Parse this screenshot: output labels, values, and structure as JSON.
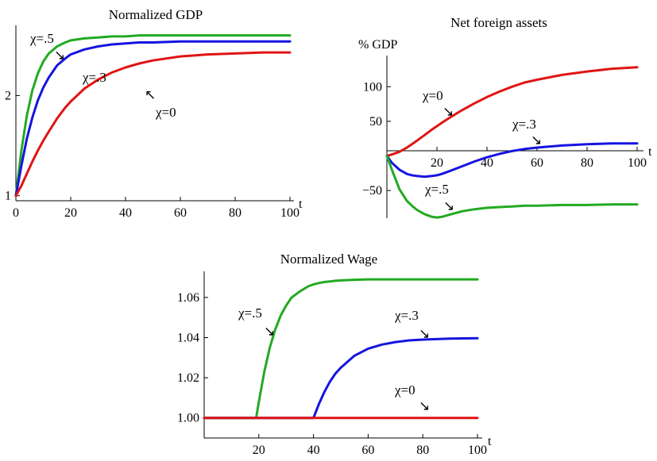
{
  "chart_data": [
    {
      "type": "line",
      "title": "Normalized GDP",
      "xlabel": "t",
      "ylabel": "",
      "xlim": [
        0,
        100
      ],
      "ylim": [
        0.95,
        2.7
      ],
      "xticks": [
        0,
        20,
        40,
        60,
        80,
        100
      ],
      "yticks": [
        1,
        2
      ],
      "x": [
        0,
        2,
        4,
        6,
        8,
        10,
        12,
        15,
        18,
        20,
        25,
        30,
        35,
        40,
        45,
        50,
        60,
        70,
        80,
        90,
        100
      ],
      "series": [
        {
          "name": "χ=.5",
          "color": "#22aa22",
          "values": [
            1.0,
            1.45,
            1.8,
            2.05,
            2.22,
            2.34,
            2.42,
            2.49,
            2.53,
            2.55,
            2.57,
            2.58,
            2.59,
            2.59,
            2.6,
            2.6,
            2.6,
            2.6,
            2.6,
            2.6,
            2.6
          ]
        },
        {
          "name": "χ=.3",
          "color": "#1414e0",
          "values": [
            1.0,
            1.3,
            1.57,
            1.78,
            1.95,
            2.08,
            2.18,
            2.3,
            2.37,
            2.41,
            2.46,
            2.49,
            2.51,
            2.52,
            2.53,
            2.53,
            2.54,
            2.54,
            2.54,
            2.54,
            2.54
          ]
        },
        {
          "name": "χ=0",
          "color": "#e01414",
          "values": [
            1.0,
            1.1,
            1.22,
            1.34,
            1.45,
            1.55,
            1.64,
            1.77,
            1.88,
            1.94,
            2.07,
            2.16,
            2.23,
            2.28,
            2.32,
            2.35,
            2.39,
            2.41,
            2.42,
            2.43,
            2.43
          ]
        }
      ],
      "annotations": [
        {
          "text": "χ=.5",
          "arrow": "↘"
        },
        {
          "text": "χ=.3",
          "arrow": ""
        },
        {
          "text": "χ=0",
          "arrow": "↖"
        }
      ]
    },
    {
      "type": "line",
      "title": "Net foreign assets",
      "xlabel": "t",
      "ylabel": "% GDP",
      "xlim": [
        0,
        100
      ],
      "ylim": [
        -90,
        145
      ],
      "xticks": [
        20,
        40,
        60,
        80,
        100
      ],
      "yticks": [
        -50,
        50,
        100
      ],
      "x": [
        0,
        2,
        5,
        8,
        10,
        12,
        15,
        18,
        20,
        22,
        25,
        30,
        35,
        40,
        45,
        50,
        55,
        60,
        70,
        80,
        90,
        100
      ],
      "series": [
        {
          "name": "χ=0",
          "color": "#e01414",
          "values": [
            0,
            2,
            6,
            12,
            17,
            22,
            30,
            38,
            43,
            48,
            55,
            66,
            76,
            85,
            93,
            100,
            106,
            110,
            117,
            122,
            126,
            128
          ]
        },
        {
          "name": "χ=.3",
          "color": "#1414e0",
          "values": [
            0,
            -10,
            -20,
            -26,
            -28,
            -29,
            -30,
            -29,
            -28,
            -26,
            -22,
            -15,
            -8,
            -2,
            3,
            7,
            10,
            12,
            15,
            17,
            18,
            18
          ]
        },
        {
          "name": "χ=.5",
          "color": "#22aa22",
          "values": [
            0,
            -20,
            -48,
            -65,
            -72,
            -78,
            -84,
            -88,
            -89,
            -88,
            -85,
            -80,
            -77,
            -75,
            -74,
            -73,
            -72,
            -72,
            -71,
            -71,
            -70,
            -70
          ]
        }
      ],
      "annotations": [
        {
          "text": "χ=0",
          "arrow": "↘"
        },
        {
          "text": "χ=.3",
          "arrow": "↘"
        },
        {
          "text": "χ=.5",
          "arrow": "↘"
        }
      ]
    },
    {
      "type": "line",
      "title": "Normalized Wage",
      "xlabel": "t",
      "ylabel": "",
      "xlim": [
        0,
        100
      ],
      "ylim": [
        0.99,
        1.073
      ],
      "xticks": [
        20,
        40,
        60,
        80,
        100
      ],
      "yticks": [
        "1.00",
        "1.02",
        "1.04",
        "1.06"
      ],
      "x": [
        0,
        19,
        20,
        22,
        24,
        26,
        28,
        30,
        32,
        35,
        38,
        40,
        42,
        44,
        46,
        48,
        50,
        55,
        60,
        65,
        70,
        75,
        80,
        90,
        100
      ],
      "series": [
        {
          "name": "χ=.5",
          "color": "#22aa22",
          "values": [
            1.0,
            1.0,
            1.008,
            1.023,
            1.035,
            1.044,
            1.051,
            1.056,
            1.06,
            1.063,
            1.0655,
            1.0665,
            1.0672,
            1.0677,
            1.068,
            1.0683,
            1.0685,
            1.0688,
            1.069,
            1.069,
            1.069,
            1.069,
            1.069,
            1.069,
            1.069
          ]
        },
        {
          "name": "χ=.3",
          "color": "#1414e0",
          "values": [
            1.0,
            1.0,
            1.0,
            1.0,
            1.0,
            1.0,
            1.0,
            1.0,
            1.0,
            1.0,
            1.0,
            1.0,
            1.007,
            1.013,
            1.018,
            1.022,
            1.025,
            1.031,
            1.0345,
            1.0365,
            1.0378,
            1.0386,
            1.039,
            1.0395,
            1.0397
          ]
        },
        {
          "name": "χ=0",
          "color": "#e01414",
          "values": [
            1.0,
            1.0,
            1.0,
            1.0,
            1.0,
            1.0,
            1.0,
            1.0,
            1.0,
            1.0,
            1.0,
            1.0,
            1.0,
            1.0,
            1.0,
            1.0,
            1.0,
            1.0,
            1.0,
            1.0,
            1.0,
            1.0,
            1.0,
            1.0,
            1.0
          ]
        }
      ],
      "annotations": [
        {
          "text": "χ=.5",
          "arrow": "↘"
        },
        {
          "text": "χ=.3",
          "arrow": "↘"
        },
        {
          "text": "χ=0",
          "arrow": "↘"
        }
      ]
    }
  ]
}
